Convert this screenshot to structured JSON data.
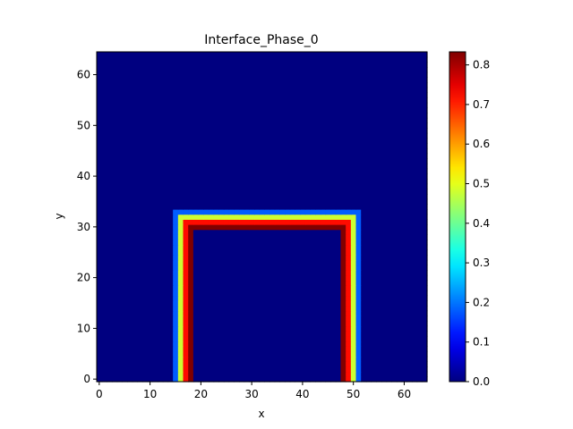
{
  "chart_data": {
    "type": "heatmap",
    "title": "Interface_Phase_0",
    "xlabel": "x",
    "ylabel": "y",
    "grid": false,
    "xlim": [
      -0.5,
      64.5
    ],
    "ylim": [
      -0.5,
      64.5
    ],
    "x_ticks": [
      0,
      10,
      20,
      30,
      40,
      50,
      60
    ],
    "y_ticks": [
      0,
      10,
      20,
      30,
      40,
      50,
      60
    ],
    "colormap": "jet",
    "colorbar": {
      "range": [
        0.0,
        0.833
      ],
      "ticks": [
        0.0,
        0.1,
        0.2,
        0.3,
        0.4,
        0.5,
        0.6,
        0.7,
        0.8
      ]
    },
    "grid_size": [
      65,
      65
    ],
    "background_value": 0.0,
    "shape": {
      "description": "inverted U-shaped interface band (upside-down U) on zero background",
      "left_leg_columns": [
        15,
        16,
        17,
        18
      ],
      "right_leg_columns": [
        48,
        49,
        50,
        51
      ],
      "top_bar_rows": [
        30,
        31,
        32,
        33
      ],
      "leg_bottom_row": 0,
      "column_values_left_to_right": [
        0.18,
        0.48,
        0.72,
        0.833
      ],
      "row_values_bottom_to_top": [
        0.833,
        0.72,
        0.48,
        0.18
      ]
    }
  }
}
